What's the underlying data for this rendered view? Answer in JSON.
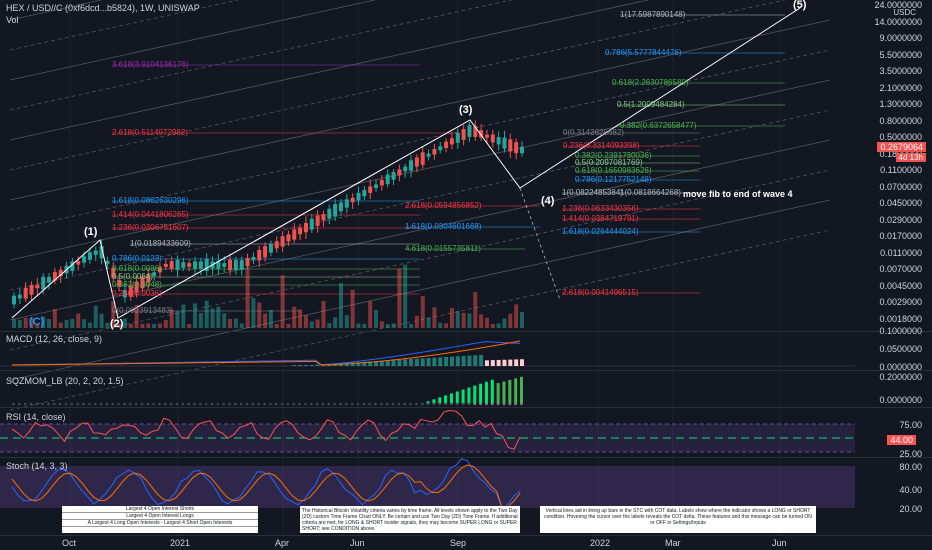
{
  "header": {
    "symbol": "HEX / USD//C (0xf6dcd...b5824), 1W, UNISWAP",
    "volume_label": "Vol",
    "currency": "USDC"
  },
  "main_axis": {
    "labels": [
      "24.0000000",
      "14.0000000",
      "9.0000000",
      "5.5000000",
      "3.5000000",
      "2.1000000",
      "1.3000000",
      "0.8000000",
      "0.5000000",
      "0.1800000",
      "0.1100000",
      "0.0700000",
      "0.0450000",
      "0.0290000",
      "0.0170000",
      "0.0110000",
      "0.0070000",
      "0.0045000",
      "0.0029000",
      "0.0018000"
    ],
    "last_price": "0.2679064",
    "last_price_sub": "4d 13h"
  },
  "fib_levels": [
    {
      "text": "1(17.5987890148)",
      "color": "#b2b5be"
    },
    {
      "text": "0.786(5.5777844476)",
      "color": "#2196f3"
    },
    {
      "text": "0.618(2.2630786589)",
      "color": "#4caf50"
    },
    {
      "text": "0.5(1.2009484284)",
      "color": "#81c784"
    },
    {
      "text": "0.382(0.6372658477)",
      "color": "#4caf50"
    },
    {
      "text": "0(0.3142625682)",
      "color": "#787b86"
    },
    {
      "text": "0.236(0.3314093398)",
      "color": "#f23645"
    },
    {
      "text": "0.382(0.2391730036)",
      "color": "#4caf50"
    },
    {
      "text": "0.5(0.2097081769)",
      "color": "#81c784"
    },
    {
      "text": "0.618(0.1650983626)",
      "color": "#4caf50"
    },
    {
      "text": "0.786(0.1217752148)",
      "color": "#2196f3"
    },
    {
      "text": "1(0.0822485384)",
      "color": "#b2b5be"
    },
    {
      "text": "1(0.0818664268)",
      "color": "#b2b5be"
    },
    {
      "text": "1.236(0.0633430356)",
      "color": "#f23645"
    },
    {
      "text": "1.414(0.0384719791)",
      "color": "#f23645"
    },
    {
      "text": "1.618(0.0264444024)",
      "color": "#2196f3"
    },
    {
      "text": "2.618(0.0041496515)",
      "color": "#f23645"
    },
    {
      "text": "3.618(3.9104136176)",
      "color": "#9c27b0"
    },
    {
      "text": "2.618(0.5114972982)",
      "color": "#f23645"
    },
    {
      "text": "1.618(0.0862630296)",
      "color": "#2196f3"
    },
    {
      "text": "1.414(0.0441806265)",
      "color": "#f23645"
    },
    {
      "text": "1.236(0.0306751607)",
      "color": "#f23645"
    },
    {
      "text": "1(0.0189433609)",
      "color": "#b2b5be"
    },
    {
      "text": "2.618(0.0594856852)",
      "color": "#f23645"
    },
    {
      "text": "1.618(0.0304601668)",
      "color": "#2196f3"
    },
    {
      "text": "4.618(0.0155735811)",
      "color": "#4caf50"
    },
    {
      "text": "0(0.0023913483)",
      "color": "#787b86"
    },
    {
      "text": "0.786(0.0123)",
      "color": "#2196f3"
    },
    {
      "text": "0.618(0.0086)",
      "color": "#4caf50"
    },
    {
      "text": "0.5(0.0064)",
      "color": "#81c784"
    },
    {
      "text": "0.382(0.0048)",
      "color": "#4caf50"
    },
    {
      "text": "0.236(0.0036)",
      "color": "#f23645"
    }
  ],
  "waves": [
    "(1)",
    "(2)",
    "(3)",
    "(4)",
    "(5)",
    "(C)"
  ],
  "annotation": "move fib to end of wave 4",
  "macd": {
    "title": "MACD (12, 26, close, 9)",
    "axis": [
      "0.1000000",
      "0.0500000",
      "0.0000000"
    ]
  },
  "sqzmom": {
    "title": "SQZMOM_LB (20, 2, 20, 1.5)",
    "axis": [
      "0.2000000",
      "0.0000000"
    ]
  },
  "rsi": {
    "title": "RSI (14, close)",
    "axis": [
      "75.00",
      "50.00",
      "25.00"
    ],
    "value": "44.00"
  },
  "stoch": {
    "title": "Stoch (14, 3, 3)",
    "axis": [
      "80.00",
      "40.00",
      "20.00"
    ]
  },
  "time_axis": [
    "Oct",
    "2021",
    "Apr",
    "Jun",
    "Sep",
    "2022",
    "Mar",
    "Jun"
  ],
  "info_boxes": {
    "table_rows": [
      "Largest 4 Open Interest Shorts",
      "Largest 4 Open Interest Longs",
      "A Largest 4 Long Open Interests - Largest 4 Short Open Interests"
    ],
    "middle": "The Historical Bitcoin Volatility criteria varies by time frame. All levels shown apply to the Two Day (2D) custom Time Frame Chart ONLY. Be certain and use Two Day (2D) Time Frame. If additional criteria are met, for LONG & SHORT insider signals, they may become SUPER LONG or SUPER SHORT; see CONDITION above.",
    "right": "Vertical lines aid in lining up bars in the STC with COT data. Labels show where the indicator shows a LONG or SHORT condition. Hovering the cursor over the labels reveals the COT delta. These features and this message can be turned ON or OFF in Settings/Inputs"
  },
  "colors": {
    "background": "#131722",
    "up": "#26a69a",
    "down": "#ef5350",
    "macd_line": "#2962ff",
    "signal_line": "#ff6d00",
    "rsi_line": "#ff5252",
    "rsi_band": "#7e57c2",
    "stoch_k": "#2962ff",
    "stoch_d": "#ff6d00",
    "sqz_green": "#00e676"
  }
}
